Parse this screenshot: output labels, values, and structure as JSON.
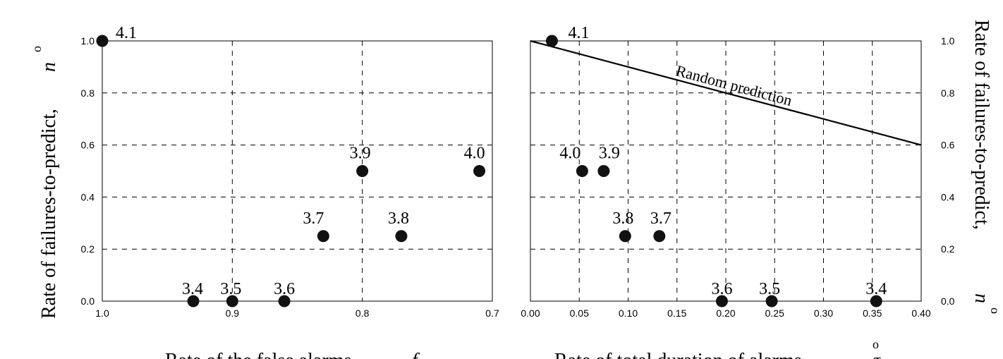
{
  "chart_data": [
    {
      "type": "scatter",
      "xlabel": "Rate of the false alarms,",
      "xlabel_symbol": "f",
      "ylabel": "Rate of  failures-to-predict,",
      "ylabel_symbol": "n",
      "ylabel_mark": "o",
      "xlim": [
        1.0,
        0.7
      ],
      "ylim": [
        0.0,
        1.0
      ],
      "x_ticks": [
        "1.0",
        "0.9",
        "0.8",
        "0.7"
      ],
      "y_ticks": [
        "0.0",
        "0.2",
        "0.4",
        "0.6",
        "0.8",
        "1.0"
      ],
      "grid": true,
      "points": [
        {
          "label": "3.4",
          "x": 0.93,
          "y": 0.0
        },
        {
          "label": "3.5",
          "x": 0.9,
          "y": 0.0
        },
        {
          "label": "3.6",
          "x": 0.86,
          "y": 0.0
        },
        {
          "label": "3.7",
          "x": 0.83,
          "y": 0.25
        },
        {
          "label": "3.8",
          "x": 0.77,
          "y": 0.25
        },
        {
          "label": "3.9",
          "x": 0.8,
          "y": 0.5
        },
        {
          "label": "4.0",
          "x": 0.71,
          "y": 0.5
        },
        {
          "label": "4.1",
          "x": 1.0,
          "y": 1.0
        }
      ]
    },
    {
      "type": "scatter",
      "xlabel": "Rate of total duration of alarms,",
      "xlabel_symbol": "τ",
      "xlabel_mark": "o",
      "ylabel": "Rate of  failures-to-predict,",
      "ylabel_symbol": "n",
      "ylabel_mark": "o",
      "xlim": [
        0.0,
        0.4
      ],
      "ylim": [
        0.0,
        1.0
      ],
      "x_ticks": [
        "0.00",
        "0.05",
        "0.10",
        "0.15",
        "0.20",
        "0.25",
        "0.30",
        "0.35",
        "0.40"
      ],
      "y_ticks": [
        "0.0",
        "0.2",
        "0.4",
        "0.6",
        "0.8",
        "1.0"
      ],
      "grid": true,
      "annotation": "Random prediction",
      "reference_line": {
        "x": [
          0.0,
          0.4
        ],
        "y": [
          1.0,
          0.6
        ]
      },
      "points": [
        {
          "label": "4.1",
          "x": 0.022,
          "y": 1.0
        },
        {
          "label": "4.0",
          "x": 0.053,
          "y": 0.5
        },
        {
          "label": "3.9",
          "x": 0.075,
          "y": 0.5
        },
        {
          "label": "3.8",
          "x": 0.097,
          "y": 0.25
        },
        {
          "label": "3.7",
          "x": 0.132,
          "y": 0.25
        },
        {
          "label": "3.6",
          "x": 0.196,
          "y": 0.0
        },
        {
          "label": "3.5",
          "x": 0.247,
          "y": 0.0
        },
        {
          "label": "3.4",
          "x": 0.354,
          "y": 0.0
        }
      ]
    }
  ]
}
